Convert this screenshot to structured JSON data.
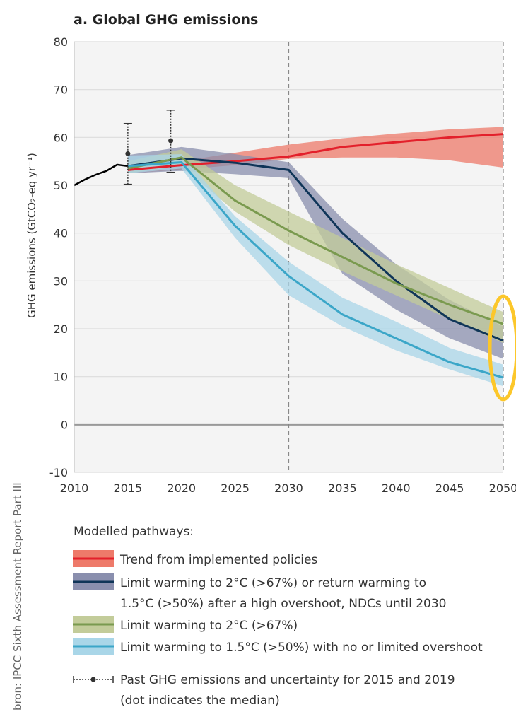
{
  "source_note": "bron: IPCC  Sixth Assessment Report Part III",
  "chart_data": {
    "type": "area",
    "title": "a. Global GHG emissions",
    "ylabel": "GHG emissions (GtCO₂-eq yr⁻¹)",
    "xlabel": "",
    "xlim": [
      2010,
      2050
    ],
    "ylim": [
      -10,
      80
    ],
    "xticks": [
      2010,
      2015,
      2020,
      2025,
      2030,
      2035,
      2040,
      2045,
      2050
    ],
    "yticks": [
      -10,
      0,
      10,
      20,
      30,
      40,
      50,
      60,
      70,
      80
    ],
    "grid": "horizontal",
    "reference_lines_x": [
      2030,
      2050
    ],
    "legend_title": "Modelled pathways:",
    "legend_position": "bottom",
    "historical": {
      "x": [
        2010,
        2011,
        2012,
        2013,
        2014,
        2015
      ],
      "y": [
        50,
        51.2,
        52.2,
        53,
        54.3,
        54
      ],
      "color": "#000000"
    },
    "past_uncertainty": {
      "label": "Past GHG emissions and uncertainty for 2015 and 2019",
      "label2": "(dot indicates the median)",
      "points": [
        {
          "x": 2015,
          "median": 56.6,
          "low": 50.2,
          "high": 62.9
        },
        {
          "x": 2019,
          "median": 59.3,
          "low": 52.7,
          "high": 65.7
        }
      ]
    },
    "series": [
      {
        "name": "Trend from implemented policies",
        "line_color": "#e3202b",
        "band_color": "#ee7a6a",
        "x": [
          2015,
          2020,
          2025,
          2030,
          2035,
          2040,
          2045,
          2050
        ],
        "y": [
          53.2,
          54.2,
          55,
          56,
          58,
          59,
          60,
          60.7
        ],
        "low": [
          52.5,
          53.3,
          54.2,
          55.5,
          55.8,
          55.8,
          55.2,
          53.7
        ],
        "high": [
          54,
          55,
          56.8,
          58.5,
          59.8,
          60.8,
          61.7,
          62.2
        ]
      },
      {
        "name": "Limit warming to 2°C (>67%) or return warming to",
        "name2": "1.5°C (>50%) after a high overshoot, NDCs until 2030",
        "line_color": "#0f3558",
        "band_color": "#8a8fae",
        "x": [
          2015,
          2020,
          2025,
          2030,
          2035,
          2040,
          2045,
          2050
        ],
        "y": [
          54,
          55.6,
          54.7,
          53.2,
          40,
          30,
          22,
          17.5
        ],
        "low": [
          52.5,
          53,
          52.3,
          51.5,
          31.5,
          24,
          18,
          13.7
        ],
        "high": [
          56.3,
          58,
          56.5,
          54.8,
          43,
          33.5,
          26,
          20.5
        ]
      },
      {
        "name": "Limit warming to 2°C (>67%)",
        "line_color": "#7a9a4f",
        "band_color": "#c3cc9a",
        "x": [
          2015,
          2020,
          2025,
          2030,
          2035,
          2040,
          2045,
          2050
        ],
        "y": [
          53.5,
          55.8,
          46.8,
          40.5,
          35,
          29.5,
          25,
          21
        ],
        "low": [
          52.5,
          54,
          44.5,
          37.5,
          32,
          27,
          22,
          17
        ],
        "high": [
          55,
          57.5,
          50,
          44.5,
          39,
          33.5,
          28.5,
          23.5
        ]
      },
      {
        "name": "Limit warming to 1.5°C (>50%) with no or limited overshoot",
        "line_color": "#3ba6c8",
        "band_color": "#a9d6e8",
        "x": [
          2015,
          2020,
          2025,
          2030,
          2035,
          2040,
          2045,
          2050
        ],
        "y": [
          54,
          54.8,
          41.5,
          31,
          23,
          18,
          13,
          9.8
        ],
        "low": [
          52.5,
          53.5,
          39,
          27,
          20.5,
          15.5,
          11.5,
          8
        ],
        "high": [
          56.2,
          56.5,
          43.5,
          34,
          26.5,
          21.5,
          16,
          12.5
        ]
      }
    ],
    "annotation": {
      "shape": "ellipse",
      "x": 2050,
      "y_range": [
        8,
        27
      ],
      "color": "#fcc72a"
    }
  }
}
